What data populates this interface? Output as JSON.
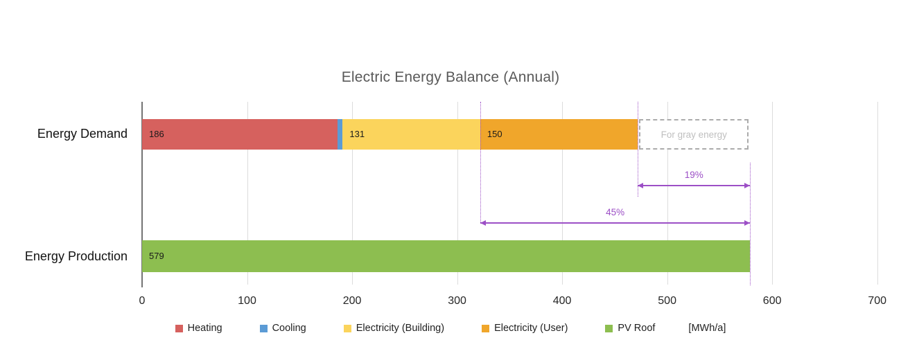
{
  "title": "Electric Energy Balance (Annual)",
  "colors": {
    "axis": "#737373",
    "gridline": "#dcdcdc",
    "title_text": "#595959",
    "annotation_purple": "#9c4fc6",
    "gray_box_border": "#ababab",
    "gray_box_text": "#bfbfbf"
  },
  "chart_data": {
    "type": "bar",
    "orientation": "horizontal",
    "title": "Electric Energy Balance (Annual)",
    "unit_label": "[MWh/a]",
    "categories": [
      "Energy Demand",
      "Energy Production"
    ],
    "series": [
      {
        "name": "Heating",
        "color": "#d6615e",
        "values": [
          186,
          0
        ],
        "show_label": true
      },
      {
        "name": "Cooling",
        "color": "#5b9bd5",
        "values": [
          5,
          0
        ],
        "show_label": false
      },
      {
        "name": "Electricity (Building)",
        "color": "#fbd45c",
        "values": [
          131,
          0
        ],
        "show_label": true
      },
      {
        "name": "Electricity (User)",
        "color": "#f0a62b",
        "values": [
          150,
          0
        ],
        "show_label": true
      },
      {
        "name": "PV Roof",
        "color": "#8dbe50",
        "values": [
          0,
          579
        ],
        "show_label": true
      }
    ],
    "xlim": [
      0,
      700
    ],
    "xticks": [
      0,
      100,
      200,
      300,
      400,
      500,
      600,
      700
    ],
    "grid": true,
    "legend_position": "bottom",
    "annotations": {
      "gray_energy_box": {
        "label": "For gray energy",
        "from": 472,
        "to": 579
      },
      "percent_arrows": [
        {
          "label": "19%",
          "from": 472,
          "to": 579
        },
        {
          "label": "45%",
          "from": 322,
          "to": 579
        }
      ],
      "guide_values": [
        322,
        472,
        579
      ]
    },
    "legend_entries": [
      "Heating",
      "Cooling",
      "Electricity (Building)",
      "Electricity (User)",
      "PV Roof",
      "[MWh/a]"
    ]
  }
}
